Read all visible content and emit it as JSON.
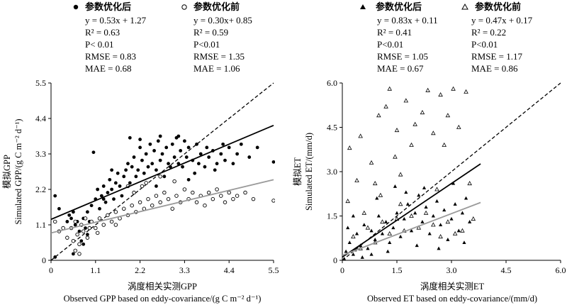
{
  "chart_data": [
    {
      "type": "scatter",
      "xlabel_cn": "涡度相关实测GPP",
      "xlabel_en": "Observed GPP based on eddy-covariance/(g C m⁻² d⁻¹)",
      "ylabel_cn": "模拟GPP",
      "ylabel_en": "Simulated GPP/(g C m⁻² d⁻¹)",
      "xlim": [
        0,
        5.5
      ],
      "ylim": [
        0,
        5.5
      ],
      "xticks": [
        "0",
        "1.1",
        "2.2",
        "3.3",
        "4.4",
        "5.5"
      ],
      "yticks": [
        "0",
        "1.1",
        "2.2",
        "3.3",
        "4.4",
        "5.5"
      ],
      "one_to_one_line": true,
      "series": [
        {
          "name": "参数优化后",
          "marker": "filled-circle",
          "color": "#000000",
          "fit": {
            "slope": 0.53,
            "intercept": 1.27
          },
          "stats": [
            "y = 0.53x + 1.27",
            "R² = 0.63",
            "P< 0.01",
            "RMSE = 0.83",
            "MAE = 0.68"
          ],
          "points": [
            [
              0.1,
              2.0
            ],
            [
              0.2,
              1.6
            ],
            [
              0.3,
              1.0
            ],
            [
              0.4,
              1.2
            ],
            [
              0.45,
              1.4
            ],
            [
              0.5,
              1.3
            ],
            [
              0.55,
              1.5
            ],
            [
              0.6,
              1.1
            ],
            [
              0.65,
              1.2
            ],
            [
              0.7,
              0.9
            ],
            [
              0.75,
              0.6
            ],
            [
              0.8,
              1.3
            ],
            [
              0.85,
              1.0
            ],
            [
              0.9,
              1.5
            ],
            [
              0.95,
              1.2
            ],
            [
              1.0,
              1.7
            ],
            [
              1.05,
              3.35
            ],
            [
              1.1,
              1.9
            ],
            [
              1.15,
              2.2
            ],
            [
              1.2,
              1.6
            ],
            [
              1.25,
              2.0
            ],
            [
              1.3,
              2.3
            ],
            [
              1.35,
              1.8
            ],
            [
              1.4,
              2.1
            ],
            [
              1.45,
              2.5
            ],
            [
              1.5,
              2.2
            ],
            [
              1.55,
              1.9
            ],
            [
              1.6,
              2.4
            ],
            [
              1.65,
              2.7
            ],
            [
              1.7,
              2.3
            ],
            [
              1.75,
              2.0
            ],
            [
              1.8,
              2.6
            ],
            [
              1.85,
              2.8
            ],
            [
              1.9,
              3.0
            ],
            [
              1.95,
              2.4
            ],
            [
              2.0,
              2.9
            ],
            [
              2.05,
              3.2
            ],
            [
              2.1,
              2.6
            ],
            [
              2.15,
              2.8
            ],
            [
              2.2,
              3.5
            ],
            [
              2.25,
              3.1
            ],
            [
              2.3,
              2.7
            ],
            [
              2.35,
              3.3
            ],
            [
              2.4,
              2.9
            ],
            [
              2.45,
              3.6
            ],
            [
              2.5,
              3.0
            ],
            [
              2.55,
              3.4
            ],
            [
              2.6,
              2.8
            ],
            [
              2.65,
              3.7
            ],
            [
              2.7,
              3.1
            ],
            [
              2.75,
              3.3
            ],
            [
              2.8,
              2.6
            ],
            [
              2.85,
              3.5
            ],
            [
              2.9,
              3.0
            ],
            [
              2.95,
              2.9
            ],
            [
              3.0,
              3.6
            ],
            [
              3.05,
              3.2
            ],
            [
              3.1,
              3.8
            ],
            [
              3.15,
              3.0
            ],
            [
              3.2,
              3.4
            ],
            [
              3.25,
              2.9
            ],
            [
              3.3,
              3.7
            ],
            [
              3.35,
              3.2
            ],
            [
              3.4,
              3.5
            ],
            [
              3.5,
              3.1
            ],
            [
              3.55,
              2.7
            ],
            [
              3.6,
              3.6
            ],
            [
              3.65,
              3.0
            ],
            [
              3.7,
              3.3
            ],
            [
              3.8,
              2.9
            ],
            [
              3.85,
              3.5
            ],
            [
              3.9,
              3.2
            ],
            [
              4.0,
              3.4
            ],
            [
              4.05,
              2.8
            ],
            [
              4.1,
              3.0
            ],
            [
              4.2,
              3.3
            ],
            [
              4.25,
              3.6
            ],
            [
              4.3,
              3.1
            ],
            [
              4.4,
              3.5
            ],
            [
              4.5,
              3.0
            ],
            [
              4.6,
              3.3
            ],
            [
              4.7,
              3.6
            ],
            [
              4.9,
              3.2
            ],
            [
              5.1,
              3.5
            ],
            [
              5.5,
              3.05
            ],
            [
              2.7,
              3.85
            ],
            [
              2.2,
              3.75
            ],
            [
              1.95,
              3.8
            ],
            [
              3.15,
              3.85
            ],
            [
              1.5,
              2.8
            ],
            [
              1.3,
              1.9
            ],
            [
              2.6,
              2.3
            ],
            [
              3.4,
              2.5
            ],
            [
              0.9,
              0.8
            ],
            [
              0.8,
              0.5
            ],
            [
              0.55,
              0.2
            ],
            [
              0.1,
              0.1
            ]
          ]
        },
        {
          "name": "参数优化前",
          "marker": "open-circle",
          "color": "#000000",
          "fit": {
            "slope": 0.3,
            "intercept": 0.85
          },
          "stats": [
            "y = 0.30x+ 0.85",
            "R² = 0.59",
            "P<0.01",
            "RMSE = 1.35",
            "MAE = 1.06"
          ],
          "points": [
            [
              0.1,
              1.2
            ],
            [
              0.2,
              0.9
            ],
            [
              0.3,
              1.0
            ],
            [
              0.4,
              0.7
            ],
            [
              0.5,
              1.0
            ],
            [
              0.55,
              0.6
            ],
            [
              0.6,
              1.2
            ],
            [
              0.65,
              0.8
            ],
            [
              0.7,
              0.5
            ],
            [
              0.75,
              1.1
            ],
            [
              0.8,
              0.9
            ],
            [
              0.85,
              1.3
            ],
            [
              0.9,
              0.7
            ],
            [
              0.95,
              1.0
            ],
            [
              1.0,
              1.2
            ],
            [
              1.1,
              1.0
            ],
            [
              1.2,
              1.3
            ],
            [
              1.3,
              1.1
            ],
            [
              1.4,
              1.4
            ],
            [
              1.5,
              1.2
            ],
            [
              1.6,
              1.5
            ],
            [
              1.7,
              1.3
            ],
            [
              1.8,
              1.6
            ],
            [
              1.9,
              1.4
            ],
            [
              2.0,
              1.7
            ],
            [
              2.05,
              2.1
            ],
            [
              2.1,
              1.5
            ],
            [
              2.2,
              1.8
            ],
            [
              2.3,
              1.6
            ],
            [
              2.35,
              2.4
            ],
            [
              2.4,
              1.9
            ],
            [
              2.5,
              1.7
            ],
            [
              2.6,
              2.0
            ],
            [
              2.7,
              1.8
            ],
            [
              2.8,
              2.1
            ],
            [
              2.9,
              1.9
            ],
            [
              3.0,
              1.6
            ],
            [
              3.1,
              2.0
            ],
            [
              3.2,
              1.8
            ],
            [
              3.3,
              2.2
            ],
            [
              3.4,
              1.9
            ],
            [
              3.5,
              2.1
            ],
            [
              3.6,
              1.8
            ],
            [
              3.7,
              2.0
            ],
            [
              3.8,
              1.7
            ],
            [
              3.9,
              2.1
            ],
            [
              4.0,
              1.9
            ],
            [
              4.1,
              2.2
            ],
            [
              4.2,
              2.0
            ],
            [
              4.3,
              1.8
            ],
            [
              4.4,
              2.1
            ],
            [
              4.5,
              1.9
            ],
            [
              4.6,
              2.0
            ],
            [
              4.8,
              2.1
            ],
            [
              5.0,
              1.9
            ],
            [
              5.5,
              1.85
            ],
            [
              2.25,
              2.3
            ],
            [
              2.7,
              2.6
            ],
            [
              1.9,
              2.3
            ],
            [
              3.05,
              2.45
            ],
            [
              0.6,
              0.3
            ],
            [
              0.7,
              0.2
            ],
            [
              1.15,
              0.85
            ],
            [
              1.6,
              1.1
            ]
          ]
        }
      ]
    },
    {
      "type": "scatter",
      "xlabel_cn": "涡度相关实测ET",
      "xlabel_en": "Observed ET based on eddy-covariance/(mm/d)",
      "ylabel_cn": "模拟ET",
      "ylabel_en": "Simulated ET/(mm/d)",
      "xlim": [
        0,
        6.0
      ],
      "ylim": [
        0,
        6.0
      ],
      "xticks": [
        "0",
        "1.5",
        "3.0",
        "4.5",
        "6.0"
      ],
      "yticks": [
        "0",
        "1.5",
        "3.0",
        "4.5",
        "6.0"
      ],
      "one_to_one_line": true,
      "series": [
        {
          "name": "参数优化后",
          "marker": "filled-triangle",
          "color": "#000000",
          "fit": {
            "slope": 0.83,
            "intercept": 0.11
          },
          "stats": [
            "y = 0.83x + 0.11",
            "R² = 0.41",
            "P<0.01",
            "RMSE = 1.05",
            "MAE = 0.67"
          ],
          "points": [
            [
              0.1,
              0.3
            ],
            [
              0.2,
              0.6
            ],
            [
              0.3,
              0.2
            ],
            [
              0.4,
              0.9
            ],
            [
              0.5,
              0.5
            ],
            [
              0.6,
              1.2
            ],
            [
              0.7,
              0.4
            ],
            [
              0.8,
              1.0
            ],
            [
              0.9,
              0.7
            ],
            [
              1.0,
              1.5
            ],
            [
              1.1,
              0.9
            ],
            [
              1.2,
              1.3
            ],
            [
              1.3,
              0.6
            ],
            [
              1.4,
              1.1
            ],
            [
              1.5,
              1.6
            ],
            [
              1.6,
              0.8
            ],
            [
              1.7,
              1.4
            ],
            [
              1.8,
              1.9
            ],
            [
              1.9,
              1.0
            ],
            [
              2.0,
              1.6
            ],
            [
              2.1,
              2.2
            ],
            [
              2.2,
              1.3
            ],
            [
              2.3,
              1.8
            ],
            [
              2.4,
              0.9
            ],
            [
              2.5,
              1.5
            ],
            [
              2.6,
              2.0
            ],
            [
              2.7,
              1.2
            ],
            [
              2.8,
              1.7
            ],
            [
              2.9,
              0.7
            ],
            [
              3.0,
              1.4
            ],
            [
              3.1,
              1.9
            ],
            [
              3.2,
              1.0
            ],
            [
              3.3,
              1.6
            ],
            [
              3.4,
              2.1
            ],
            [
              3.5,
              1.3
            ],
            [
              1.45,
              2.5
            ],
            [
              0.95,
              2.1
            ],
            [
              0.3,
              1.5
            ],
            [
              0.15,
              1.1
            ],
            [
              3.05,
              2.6
            ],
            [
              2.25,
              2.45
            ],
            [
              1.75,
              2.3
            ],
            [
              0.55,
              0.1
            ],
            [
              0.8,
              0.2
            ],
            [
              1.25,
              0.3
            ],
            [
              2.05,
              0.5
            ],
            [
              2.65,
              0.4
            ],
            [
              3.35,
              0.6
            ],
            [
              0.05,
              0.05
            ],
            [
              0.35,
              0.35
            ]
          ]
        },
        {
          "name": "参数优化前",
          "marker": "open-triangle",
          "color": "#000000",
          "fit": {
            "slope": 0.47,
            "intercept": 0.17
          },
          "stats": [
            "y = 0.47x + 0.17",
            "R² = 0.22",
            "P<0.01",
            "RMSE = 1.17",
            "MAE = 0.86"
          ],
          "points": [
            [
              0.2,
              3.8
            ],
            [
              0.4,
              2.7
            ],
            [
              0.5,
              4.2
            ],
            [
              0.6,
              1.6
            ],
            [
              0.8,
              3.3
            ],
            [
              1.0,
              4.9
            ],
            [
              1.05,
              2.2
            ],
            [
              1.2,
              5.2
            ],
            [
              1.3,
              5.8
            ],
            [
              1.45,
              3.5
            ],
            [
              1.5,
              4.4
            ],
            [
              1.6,
              2.9
            ],
            [
              1.75,
              5.4
            ],
            [
              1.9,
              3.9
            ],
            [
              2.0,
              4.6
            ],
            [
              2.2,
              5.0
            ],
            [
              2.35,
              5.75
            ],
            [
              2.5,
              4.3
            ],
            [
              2.7,
              5.6
            ],
            [
              2.8,
              3.9
            ],
            [
              2.9,
              4.9
            ],
            [
              3.05,
              5.8
            ],
            [
              3.2,
              4.5
            ],
            [
              3.4,
              5.7
            ],
            [
              3.5,
              2.6
            ],
            [
              0.3,
              0.8
            ],
            [
              0.5,
              0.4
            ],
            [
              0.7,
              1.1
            ],
            [
              0.9,
              0.6
            ],
            [
              1.1,
              1.3
            ],
            [
              1.3,
              0.9
            ],
            [
              1.5,
              1.4
            ],
            [
              1.7,
              1.0
            ],
            [
              1.9,
              1.5
            ],
            [
              2.1,
              1.1
            ],
            [
              2.3,
              1.6
            ],
            [
              2.5,
              1.2
            ],
            [
              2.7,
              0.8
            ],
            [
              2.9,
              1.3
            ],
            [
              3.1,
              0.9
            ],
            [
              3.3,
              1.0
            ],
            [
              3.6,
              1.4
            ],
            [
              0.9,
              2.6
            ],
            [
              1.6,
              1.9
            ],
            [
              0.15,
              2.0
            ],
            [
              2.6,
              2.4
            ]
          ]
        }
      ]
    }
  ]
}
